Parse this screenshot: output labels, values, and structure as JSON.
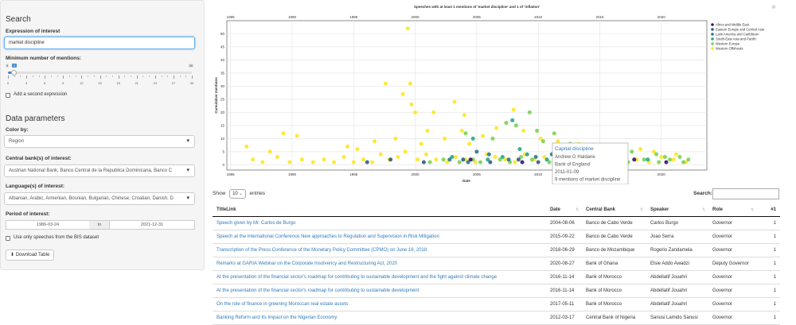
{
  "sidebar": {
    "search_heading": "Search",
    "expression_label": "Expression of interest",
    "expression_value": "market discipline",
    "mentions_label": "Minimum number of mentions:",
    "slider": {
      "min_label": "0",
      "max_label": "30",
      "value": 1,
      "min": 0,
      "max": 30,
      "ticks": [
        "0",
        "3",
        "6",
        "9",
        "12",
        "15",
        "18",
        "21",
        "24",
        "27",
        "30"
      ]
    },
    "add_expression_label": "Add a second expression",
    "data_heading": "Data parameters",
    "color_label": "Color by:",
    "color_value": "Region",
    "bank_label": "Central bank(s) of interest:",
    "bank_value": "Austrian National Bank, Banco Central de la Republica Dominicana, Banco C",
    "language_label": "Language(s) of interest:",
    "language_value": "Albanian, Arabic, Armenian, Bosnian, Bulgarian, Chinese, Croatian, Danish, D",
    "period_label": "Period of interest:",
    "date_from": "1986-03-24",
    "date_to_label": "to",
    "date_to": "2021-12-31",
    "bis_only_label": "Use only speeches from the BIS dataset",
    "download_label": "Download Table"
  },
  "chart_data": {
    "type": "scatter",
    "title": "Speeches with at least 1 mentions of 'market discipline' and 1 of 'inflation'",
    "xlabel": "Date",
    "ylabel": "Cumulative mentions",
    "xlim": [
      1984.7,
      2023.7
    ],
    "ylim": [
      -2,
      55
    ],
    "x_ticks": [
      1985,
      1990,
      1995,
      2000,
      2005,
      2010,
      2015,
      2020
    ],
    "y_ticks": [
      0,
      5,
      10,
      15,
      20,
      25,
      30,
      35,
      40,
      45,
      50
    ],
    "grid": true,
    "legend_position": "top-right",
    "legend": [
      {
        "name": "Africa and Middle East",
        "color": "#3b0f70"
      },
      {
        "name": "Eastern Europe and Central Asia",
        "color": "#2f5c8a"
      },
      {
        "name": "Latin America and Caribbean",
        "color": "#2a788e"
      },
      {
        "name": "South-East Asia and Pacific",
        "color": "#22a884"
      },
      {
        "name": "Western Europe",
        "color": "#7ad151"
      },
      {
        "name": "Western Offshoots",
        "color": "#fde725"
      }
    ],
    "series": [
      {
        "name": "Western Offshoots",
        "points": [
          [
            1999.4,
            52
          ],
          [
            1997.6,
            31
          ],
          [
            1999.6,
            31
          ],
          [
            1999.0,
            27
          ],
          [
            1999.7,
            23
          ],
          [
            2003.2,
            24
          ],
          [
            2008.0,
            21
          ],
          [
            2000.0,
            20
          ],
          [
            2001.5,
            20
          ],
          [
            2004.0,
            19
          ],
          [
            1989.3,
            12
          ],
          [
            1990.4,
            11
          ],
          [
            1986.3,
            7
          ],
          [
            1988.2,
            5
          ],
          [
            1994.5,
            7
          ],
          [
            1995.3,
            6
          ],
          [
            1996.7,
            9
          ],
          [
            1998.4,
            10
          ],
          [
            2000.5,
            8
          ],
          [
            2001.0,
            13
          ],
          [
            2002.4,
            10
          ],
          [
            2003.8,
            13
          ],
          [
            2004.4,
            8
          ],
          [
            2005.5,
            11
          ],
          [
            2006.6,
            14
          ],
          [
            2008.8,
            13
          ],
          [
            2010.2,
            10
          ],
          [
            2011.6,
            9
          ],
          [
            2013.3,
            8
          ],
          [
            2014.8,
            7
          ],
          [
            2016.5,
            7
          ],
          [
            2018.3,
            6
          ],
          [
            2019.4,
            5
          ],
          [
            2021.2,
            4
          ],
          [
            1986.8,
            2
          ],
          [
            1987.6,
            1
          ],
          [
            1988.8,
            3
          ],
          [
            1989.8,
            1
          ],
          [
            1990.8,
            2
          ],
          [
            1991.7,
            1
          ],
          [
            1992.6,
            2
          ],
          [
            1993.4,
            1
          ],
          [
            1994.2,
            3
          ],
          [
            1995.0,
            1
          ],
          [
            1995.8,
            2
          ],
          [
            1996.5,
            1
          ],
          [
            1997.2,
            4
          ],
          [
            1997.9,
            2
          ],
          [
            1998.6,
            3
          ],
          [
            1999.2,
            5
          ],
          [
            2000.2,
            2
          ],
          [
            2000.9,
            4
          ],
          [
            2001.7,
            2
          ],
          [
            2002.6,
            1
          ],
          [
            2003.3,
            3
          ],
          [
            2004.1,
            2
          ],
          [
            2004.9,
            1
          ],
          [
            2005.8,
            4
          ],
          [
            2006.5,
            3
          ],
          [
            2007.3,
            2
          ],
          [
            2008.1,
            1
          ],
          [
            2008.9,
            4
          ],
          [
            2009.7,
            2
          ],
          [
            2010.5,
            3
          ],
          [
            2011.3,
            1
          ],
          [
            2012.1,
            2
          ],
          [
            2012.9,
            4
          ],
          [
            2013.8,
            1
          ],
          [
            2014.5,
            3
          ],
          [
            2015.4,
            2
          ],
          [
            2016.2,
            1
          ],
          [
            2017.1,
            3
          ],
          [
            2018.0,
            2
          ],
          [
            2019.0,
            1
          ],
          [
            2020.0,
            3
          ],
          [
            2021.0,
            2
          ],
          [
            2022.0,
            1
          ]
        ]
      },
      {
        "name": "Western Europe",
        "points": [
          [
            2009.3,
            20
          ],
          [
            2007.4,
            16
          ],
          [
            2008.2,
            15
          ],
          [
            2009.9,
            13
          ],
          [
            2011.3,
            12
          ],
          [
            2004.1,
            12
          ],
          [
            2006.3,
            10
          ],
          [
            2010.4,
            9
          ],
          [
            2012.6,
            8
          ],
          [
            2014.6,
            6
          ],
          [
            2016.6,
            6
          ],
          [
            2017.6,
            5
          ],
          [
            2019.6,
            4
          ],
          [
            2020.3,
            3
          ],
          [
            2021.5,
            3
          ],
          [
            2022.2,
            2
          ],
          [
            2001.2,
            1
          ],
          [
            2002.3,
            2
          ],
          [
            2003.6,
            1
          ],
          [
            2004.7,
            2
          ],
          [
            2005.3,
            1
          ],
          [
            2006.9,
            2
          ],
          [
            2007.7,
            1
          ],
          [
            2008.6,
            3
          ],
          [
            2009.5,
            2
          ],
          [
            2010.9,
            1
          ],
          [
            2011.9,
            2
          ],
          [
            2012.8,
            1
          ],
          [
            2013.6,
            3
          ],
          [
            2015.0,
            1
          ],
          [
            2016.0,
            2
          ],
          [
            2017.3,
            1
          ],
          [
            2018.6,
            2
          ],
          [
            2019.8,
            1
          ],
          [
            2020.7,
            2
          ],
          [
            2021.8,
            1
          ]
        ]
      },
      {
        "name": "South-East Asia and Pacific",
        "points": [
          [
            2007.9,
            17
          ],
          [
            2004.7,
            10
          ],
          [
            2008.5,
            6
          ],
          [
            2009.1,
            4
          ],
          [
            2003.0,
            3
          ],
          [
            2005.9,
            2
          ],
          [
            2007.1,
            3
          ],
          [
            2010.7,
            2
          ],
          [
            2013.0,
            2
          ],
          [
            2015.7,
            1
          ],
          [
            2018.9,
            2
          ]
        ]
      },
      {
        "name": "Latin America and Caribbean",
        "points": [
          [
            2005.0,
            5
          ],
          [
            2006.0,
            4
          ],
          [
            2009.8,
            3
          ],
          [
            2011.1,
            4
          ],
          [
            2002.8,
            2
          ],
          [
            2004.3,
            1
          ],
          [
            2007.6,
            2
          ],
          [
            2012.4,
            1
          ],
          [
            2014.2,
            2
          ],
          [
            2016.9,
            1
          ]
        ]
      },
      {
        "name": "Eastern Europe and Central Asia",
        "points": [
          [
            1996.1,
            1
          ],
          [
            1998.0,
            2
          ],
          [
            2000.7,
            1
          ],
          [
            2003.9,
            2
          ],
          [
            2006.1,
            1
          ],
          [
            2008.4,
            2
          ],
          [
            2010.0,
            1
          ]
        ]
      },
      {
        "name": "Africa and Middle East",
        "points": [
          [
            2004.5,
            2
          ],
          [
            2008.7,
            1
          ],
          [
            2012.0,
            2
          ],
          [
            2014.9,
            1
          ],
          [
            2017.8,
            2
          ],
          [
            2020.4,
            1
          ]
        ]
      }
    ],
    "tooltip": {
      "title": "Capital discipline",
      "lines": [
        "Andrew G Haldane",
        "Bank of England",
        "2011-01-09",
        "9 mentions of market discipline"
      ]
    }
  },
  "table": {
    "show_label": "Show",
    "length_value": "10",
    "entries_label": "entries",
    "search_label": "Search:",
    "columns": [
      "TitleLink",
      "Date",
      "Central Bank",
      "Speaker",
      "Role",
      "#1"
    ],
    "rows": [
      [
        "Speech given by Mr. Carlos de Burgo",
        "2004-08-06",
        "Banco de Cabo Verde",
        "Carlos Burgo",
        "Governor",
        "1"
      ],
      [
        "Speech at the International Conference New approaches to Regulation and Supervision in Risk Mitigation",
        "2015-09-22",
        "Banco de Cabo Verde",
        "Joao Serra",
        "Governor",
        "1"
      ],
      [
        "Transcription of the Press Conference of the Monetary Policy Committee (CPMO) on June 18, 2018",
        "2018-06-29",
        "Banco de Mozambique",
        "Rogerio Zandamela",
        "Governor",
        "1"
      ],
      [
        "Remarks at GARIA Webinar on the Corporate Insolvency and Restructuring Act, 2020",
        "2020-08-27",
        "Bank of Ghana",
        "Elsie Addo Awadzi",
        "Deputy Governor",
        "1"
      ],
      [
        "At the presentation of the financial sector's roadmap for contributing to sustainable development and the fight against climate change",
        "2016-11-14",
        "Bank of Morocco",
        "Abdellatif Jouahri",
        "Governor",
        "1"
      ],
      [
        "At the presentation of the financial sector's roadmap for contributing to sustainable development",
        "2016-11-14",
        "Bank of Morocco",
        "Abdellatif Jouahri",
        "Governor",
        "1"
      ],
      [
        "On the role of finance in greening Moroccan real estate assets",
        "2017-05-11",
        "Bank of Morocco",
        "Abdellatif Jouahri",
        "Governor",
        "1"
      ],
      [
        "Banking Reform and Its Impact on the Nigerian Economy",
        "2012-03-17",
        "Central Bank of Nigeria",
        "Sanusi Lamido Sanusi",
        "Governor",
        "1"
      ]
    ]
  }
}
